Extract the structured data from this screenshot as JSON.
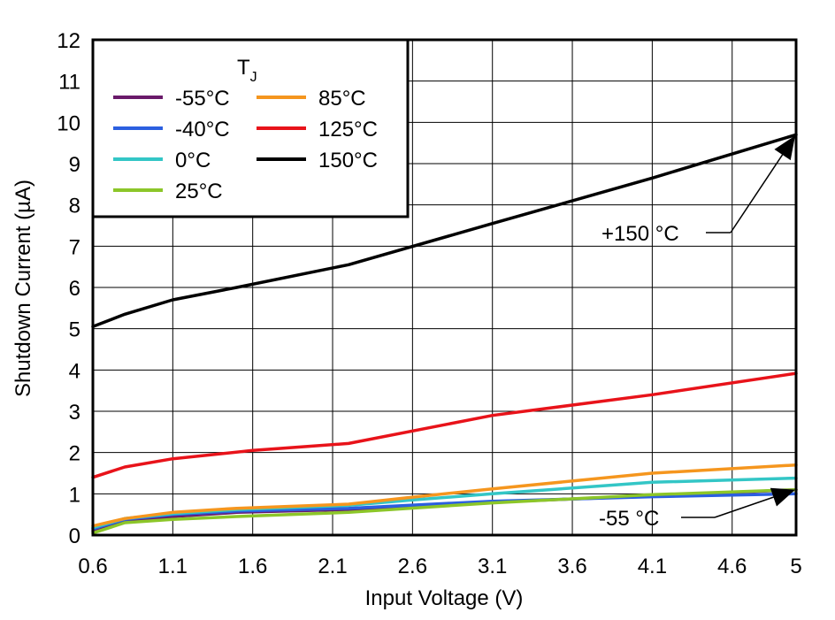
{
  "chart_data": {
    "type": "line",
    "xlabel": "Input Voltage (V)",
    "ylabel": "Shutdown Current (µA)",
    "xlim": [
      0.6,
      5
    ],
    "ylim": [
      0,
      12
    ],
    "x_ticks": [
      "0.6",
      "1.1",
      "1.6",
      "2.1",
      "2.6",
      "3.1",
      "3.6",
      "4.1",
      "4.6",
      "5"
    ],
    "y_ticks": [
      "0",
      "1",
      "2",
      "3",
      "4",
      "5",
      "6",
      "7",
      "8",
      "9",
      "10",
      "11",
      "12"
    ],
    "grid": true,
    "legend": {
      "title_main": "T",
      "title_sub": "J",
      "placement": "top-left"
    },
    "series": [
      {
        "name": "-55°C",
        "color": "#6a1a6a",
        "x": [
          0.6,
          0.8,
          1.1,
          1.5,
          2.2,
          3.1,
          4.1,
          5.0
        ],
        "values": [
          0.1,
          0.35,
          0.45,
          0.55,
          0.62,
          0.8,
          0.95,
          1.1
        ]
      },
      {
        "name": "-40°C",
        "color": "#2b5fe0",
        "x": [
          0.6,
          0.8,
          1.1,
          1.5,
          2.2,
          3.1,
          4.1,
          5.0
        ],
        "values": [
          0.15,
          0.38,
          0.5,
          0.58,
          0.65,
          0.82,
          0.93,
          1.0
        ]
      },
      {
        "name": "0°C",
        "color": "#33c6c6",
        "x": [
          0.6,
          0.8,
          1.1,
          1.5,
          2.2,
          2.6,
          3.1,
          4.1,
          5.0
        ],
        "values": [
          0.18,
          0.4,
          0.52,
          0.62,
          0.72,
          0.85,
          1.0,
          1.28,
          1.38
        ]
      },
      {
        "name": "25°C",
        "color": "#8cc629",
        "x": [
          0.6,
          0.8,
          1.1,
          1.5,
          2.2,
          3.1,
          4.1,
          5.0
        ],
        "values": [
          0.05,
          0.3,
          0.38,
          0.45,
          0.55,
          0.78,
          0.98,
          1.1
        ]
      },
      {
        "name": "85°C",
        "color": "#f5961e",
        "x": [
          0.6,
          0.8,
          1.1,
          1.5,
          2.2,
          2.6,
          3.1,
          4.1,
          5.0
        ],
        "values": [
          0.22,
          0.4,
          0.55,
          0.65,
          0.75,
          0.92,
          1.12,
          1.5,
          1.7
        ]
      },
      {
        "name": "125°C",
        "color": "#e8131a",
        "x": [
          0.6,
          0.8,
          1.1,
          1.6,
          2.2,
          3.1,
          4.1,
          5.0
        ],
        "values": [
          1.4,
          1.65,
          1.85,
          2.05,
          2.22,
          2.9,
          3.4,
          3.92
        ]
      },
      {
        "name": "150°C",
        "color": "#000000",
        "x": [
          0.6,
          0.8,
          1.1,
          1.5,
          2.2,
          3.1,
          4.1,
          5.0
        ],
        "values": [
          5.05,
          5.35,
          5.7,
          6.0,
          6.55,
          7.55,
          8.65,
          9.7
        ]
      }
    ],
    "annotations": [
      {
        "text": "+150 °C",
        "points_to": {
          "x": 5.0,
          "y": 9.7
        }
      },
      {
        "text": "-55 °C",
        "points_to": {
          "x": 5.0,
          "y": 1.1
        }
      }
    ]
  }
}
